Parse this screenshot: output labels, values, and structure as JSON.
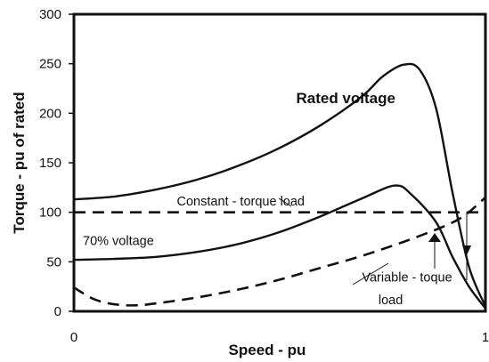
{
  "chart_data": {
    "type": "line",
    "title": "",
    "xlabel": "Speed - pu",
    "ylabel": "Torque - pu of rated",
    "xlim": [
      0,
      1
    ],
    "ylim": [
      0,
      300
    ],
    "x_ticks": [
      "0",
      "1"
    ],
    "y_ticks": [
      "0",
      "50",
      "100",
      "150",
      "200",
      "250",
      "300"
    ],
    "grid": false,
    "series": [
      {
        "name": "Rated voltage",
        "style": "solid",
        "x": [
          0,
          0.1,
          0.2,
          0.3,
          0.4,
          0.5,
          0.6,
          0.7,
          0.75,
          0.8,
          0.84,
          0.88,
          0.92,
          0.96,
          1.0
        ],
        "y": [
          113,
          116,
          123,
          133,
          147,
          165,
          188,
          217,
          237,
          249,
          244,
          205,
          120,
          45,
          5
        ]
      },
      {
        "name": "70% voltage",
        "style": "solid",
        "x": [
          0,
          0.1,
          0.2,
          0.3,
          0.4,
          0.5,
          0.6,
          0.7,
          0.78,
          0.82,
          0.88,
          0.92,
          0.96,
          1.0
        ],
        "y": [
          52,
          53,
          55,
          60,
          68,
          80,
          96,
          114,
          127,
          118,
          90,
          55,
          25,
          3
        ]
      },
      {
        "name": "Constant - torque load",
        "style": "dashed",
        "x": [
          0,
          0.5,
          1.0
        ],
        "y": [
          100,
          100,
          100
        ]
      },
      {
        "name": "Variable - toque load",
        "style": "dashed",
        "x": [
          0,
          0.05,
          0.1,
          0.15,
          0.2,
          0.3,
          0.4,
          0.5,
          0.6,
          0.7,
          0.8,
          0.9,
          0.95,
          1.0
        ],
        "y": [
          24,
          12,
          7,
          6,
          8,
          14,
          22,
          32,
          44,
          56,
          70,
          86,
          97,
          115
        ]
      }
    ],
    "annotations": [
      {
        "text": "Rated voltage",
        "x": 0.54,
        "y": 210,
        "bold": true
      },
      {
        "text": "Constant - torque load",
        "x": 0.25,
        "y": 107,
        "bold": false
      },
      {
        "text": "70% voltage",
        "x": 0.0,
        "y": 67,
        "bold": false
      },
      {
        "text": "Variable - toque",
        "x": 0.7,
        "y": 30,
        "bold": false
      },
      {
        "text": "load",
        "x": 0.74,
        "y": 7,
        "bold": false
      }
    ],
    "colors": {
      "line": "#111111",
      "background": "#ffffff"
    }
  }
}
